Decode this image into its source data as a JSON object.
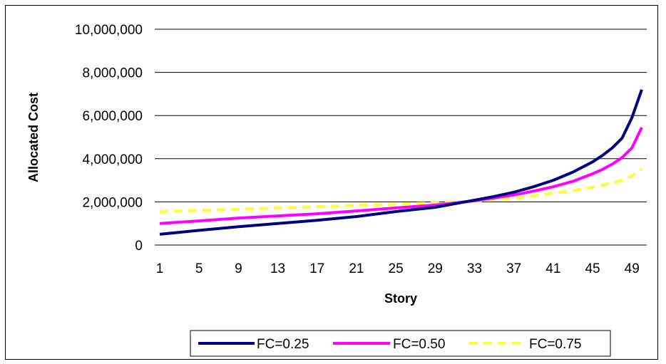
{
  "chart_data": {
    "type": "line",
    "xlabel": "Story",
    "ylabel": "Allocated Cost",
    "ylim": [
      0,
      10000000
    ],
    "y_ticks": [
      0,
      2000000,
      4000000,
      6000000,
      8000000,
      10000000
    ],
    "y_tick_labels": [
      "0",
      "2,000,000",
      "4,000,000",
      "6,000,000",
      "8,000,000",
      "10,000,000"
    ],
    "x_tick_labels": [
      "1",
      "5",
      "9",
      "13",
      "17",
      "21",
      "25",
      "29",
      "33",
      "37",
      "41",
      "45",
      "49"
    ],
    "x_range": [
      1,
      50
    ],
    "grid": "horizontal",
    "legend_position": "bottom",
    "series": [
      {
        "name": "FC=0.25",
        "color": "#000080",
        "dash": "solid",
        "x": [
          1,
          5,
          9,
          13,
          17,
          21,
          25,
          29,
          33,
          35,
          37,
          39,
          41,
          43,
          45,
          46,
          47,
          48,
          49,
          50
        ],
        "y": [
          500000,
          680000,
          850000,
          1000000,
          1150000,
          1320000,
          1550000,
          1750000,
          2080000,
          2250000,
          2450000,
          2700000,
          3000000,
          3380000,
          3850000,
          4150000,
          4500000,
          4950000,
          5900000,
          7200000
        ]
      },
      {
        "name": "FC=0.50",
        "color": "#FF00FF",
        "dash": "solid",
        "x": [
          1,
          5,
          9,
          13,
          17,
          21,
          25,
          29,
          33,
          35,
          37,
          39,
          41,
          43,
          45,
          46,
          47,
          48,
          49,
          50
        ],
        "y": [
          1000000,
          1120000,
          1250000,
          1350000,
          1450000,
          1580000,
          1720000,
          1850000,
          2050000,
          2180000,
          2320000,
          2500000,
          2700000,
          2950000,
          3300000,
          3500000,
          3750000,
          4050000,
          4500000,
          5450000
        ]
      },
      {
        "name": "FC=0.75",
        "color": "#FFFF33",
        "dash": "dashed",
        "x": [
          1,
          5,
          9,
          13,
          17,
          21,
          25,
          29,
          33,
          35,
          37,
          39,
          41,
          43,
          45,
          46,
          47,
          48,
          49,
          50
        ],
        "y": [
          1550000,
          1600000,
          1660000,
          1720000,
          1780000,
          1840000,
          1890000,
          1950000,
          2020000,
          2100000,
          2180000,
          2280000,
          2400000,
          2520000,
          2680000,
          2780000,
          2880000,
          3000000,
          3200000,
          3550000
        ]
      }
    ]
  }
}
